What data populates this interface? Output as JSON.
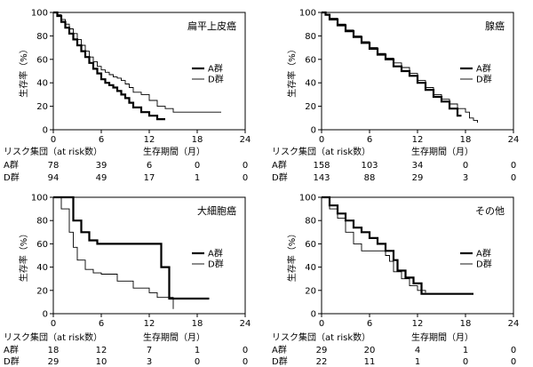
{
  "chart_data": [
    {
      "type": "line",
      "title": "扁平上皮癌",
      "xlabel": "生存期間（月）",
      "ylabel": "生存率（%）",
      "xlim": [
        0,
        24
      ],
      "ylim": [
        0,
        100
      ],
      "xticks": [
        "0",
        "6",
        "12",
        "18",
        "24"
      ],
      "yticks": [
        "0",
        "20",
        "40",
        "60",
        "80",
        "100"
      ],
      "legend_position": "right",
      "series": [
        {
          "name": "A群",
          "style": "thick",
          "x": [
            0,
            0.5,
            1,
            1.5,
            2,
            2.5,
            3,
            3.5,
            4,
            4.5,
            5,
            5.5,
            6,
            6.5,
            7,
            7.5,
            8,
            8.5,
            9,
            9.5,
            10,
            11,
            12,
            13,
            14
          ],
          "y": [
            100,
            97,
            92,
            87,
            82,
            77,
            72,
            67,
            62,
            57,
            52,
            48,
            43,
            40,
            38,
            36,
            33,
            30,
            27,
            23,
            19,
            15,
            12,
            9,
            9
          ]
        },
        {
          "name": "D群",
          "style": "thin",
          "x": [
            0,
            0.5,
            1,
            1.5,
            2,
            2.5,
            3,
            3.5,
            4,
            4.5,
            5,
            5.5,
            6,
            6.5,
            7,
            7.5,
            8,
            8.5,
            9,
            9.5,
            10,
            11,
            12,
            13,
            14,
            15,
            17,
            19,
            21
          ],
          "y": [
            100,
            98,
            94,
            90,
            86,
            82,
            77,
            72,
            67,
            62,
            58,
            54,
            51,
            49,
            47,
            45,
            44,
            42,
            39,
            36,
            32,
            30,
            25,
            20,
            18,
            15,
            15,
            15,
            15
          ]
        }
      ],
      "risk_table": {
        "header": "リスク集団（at risk数）",
        "rows": [
          {
            "label": "A群",
            "values": [
              "78",
              "39",
              "6",
              "0",
              "0"
            ]
          },
          {
            "label": "D群",
            "values": [
              "94",
              "49",
              "17",
              "1",
              "0"
            ]
          }
        ]
      }
    },
    {
      "type": "line",
      "title": "腺癌",
      "xlabel": "生存期間（月）",
      "ylabel": "生存率（%）",
      "xlim": [
        0,
        24
      ],
      "ylim": [
        0,
        100
      ],
      "xticks": [
        "0",
        "6",
        "12",
        "18",
        "24"
      ],
      "yticks": [
        "0",
        "20",
        "40",
        "60",
        "80",
        "100"
      ],
      "legend_position": "right",
      "series": [
        {
          "name": "A群",
          "style": "thick",
          "x": [
            0,
            0.5,
            1,
            2,
            3,
            4,
            5,
            6,
            7,
            8,
            9,
            10,
            11,
            12,
            13,
            14,
            15,
            16,
            17,
            17.5
          ],
          "y": [
            100,
            98,
            94,
            89,
            84,
            79,
            74,
            69,
            64,
            60,
            54,
            50,
            46,
            40,
            34,
            28,
            24,
            18,
            12,
            12
          ]
        },
        {
          "name": "D群",
          "style": "thin",
          "x": [
            0,
            0.5,
            1,
            2,
            3,
            4,
            5,
            6,
            7,
            8,
            9,
            10,
            11,
            12,
            13,
            14,
            15,
            16,
            17,
            18,
            18.5,
            19,
            19.5
          ],
          "y": [
            100,
            98,
            95,
            90,
            85,
            80,
            75,
            70,
            65,
            61,
            57,
            53,
            48,
            42,
            36,
            30,
            26,
            22,
            18,
            15,
            10,
            8,
            6
          ]
        }
      ],
      "risk_table": {
        "header": "リスク集団（at risk数）",
        "rows": [
          {
            "label": "A群",
            "values": [
              "158",
              "103",
              "34",
              "0",
              "0"
            ]
          },
          {
            "label": "D群",
            "values": [
              "143",
              "88",
              "29",
              "3",
              "0"
            ]
          }
        ]
      }
    },
    {
      "type": "line",
      "title": "大細胞癌",
      "xlabel": "生存期間（月）",
      "ylabel": "生存率（%）",
      "xlim": [
        0,
        24
      ],
      "ylim": [
        0,
        100
      ],
      "xticks": [
        "0",
        "6",
        "12",
        "18",
        "24"
      ],
      "yticks": [
        "0",
        "20",
        "40",
        "60",
        "80",
        "100"
      ],
      "legend_position": "right",
      "series": [
        {
          "name": "A群",
          "style": "thick",
          "x": [
            0,
            1.5,
            2.5,
            3.5,
            4.5,
            5.5,
            6.5,
            13,
            13.5,
            14.5,
            19.5
          ],
          "y": [
            100,
            100,
            80,
            70,
            63,
            60,
            60,
            60,
            40,
            13,
            13
          ]
        },
        {
          "name": "D群",
          "style": "thin",
          "x": [
            0,
            1,
            2,
            2.5,
            3,
            4,
            5,
            6,
            8,
            10,
            12,
            13,
            15
          ],
          "y": [
            100,
            90,
            70,
            57,
            46,
            38,
            35,
            34,
            28,
            22,
            18,
            14,
            4
          ]
        }
      ],
      "risk_table": {
        "header": "リスク集団（at risk数）",
        "rows": [
          {
            "label": "A群",
            "values": [
              "18",
              "12",
              "7",
              "1",
              "0"
            ]
          },
          {
            "label": "D群",
            "values": [
              "29",
              "10",
              "3",
              "0",
              "0"
            ]
          }
        ]
      }
    },
    {
      "type": "line",
      "title": "その他",
      "xlabel": "生存期間（月）",
      "ylabel": "生存率（%）",
      "xlim": [
        0,
        24
      ],
      "ylim": [
        0,
        100
      ],
      "xticks": [
        "0",
        "6",
        "12",
        "18",
        "24"
      ],
      "yticks": [
        "0",
        "20",
        "40",
        "60",
        "80",
        "100"
      ],
      "legend_position": "right",
      "series": [
        {
          "name": "A群",
          "style": "thick",
          "x": [
            0,
            1,
            2,
            3,
            4,
            5,
            6,
            7,
            8,
            9,
            9.5,
            10.5,
            11.5,
            12.5,
            19
          ],
          "y": [
            100,
            93,
            86,
            80,
            74,
            70,
            65,
            60,
            54,
            46,
            37,
            31,
            26,
            17,
            17
          ]
        },
        {
          "name": "D群",
          "style": "thin",
          "x": [
            0,
            1,
            2,
            3,
            4,
            5,
            6,
            7,
            8,
            8.5,
            9,
            10,
            11,
            12,
            13
          ],
          "y": [
            100,
            90,
            82,
            70,
            60,
            54,
            54,
            54,
            50,
            45,
            36,
            30,
            24,
            20,
            18
          ]
        }
      ],
      "risk_table": {
        "header": "リスク集団（at risk数）",
        "rows": [
          {
            "label": "A群",
            "values": [
              "29",
              "20",
              "4",
              "1",
              "0"
            ]
          },
          {
            "label": "D群",
            "values": [
              "22",
              "11",
              "1",
              "0",
              "0"
            ]
          }
        ]
      }
    }
  ]
}
